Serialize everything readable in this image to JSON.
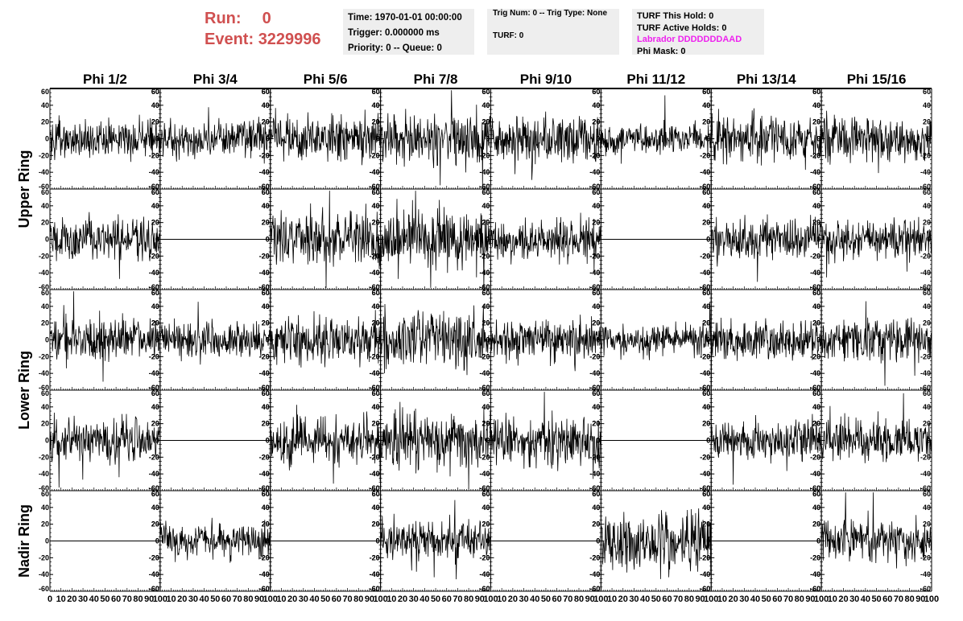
{
  "header": {
    "run_label": "Run:",
    "run_value": "0",
    "event_label": "Event:",
    "event_value": "3229996",
    "colors": {
      "run_event": "#d05050",
      "labrador": "#ee22ee",
      "box_bg": "#eeeeee"
    }
  },
  "info": {
    "time": "Time: 1970-01-01 00:00:00",
    "trigger": "Trigger: 0.000000 ms",
    "priority": "Priority: 0 -- Queue: 0",
    "trig_num": "Trig Num: 0 -- Trig Type: None",
    "turf": "TURF: 0",
    "turf_this_hold": "TURF This Hold: 0",
    "turf_active_holds": "TURF Active Holds: 0",
    "labrador": "Labrador DDDDDDDAAD",
    "phi_mask": "Phi Mask: 0"
  },
  "chart_data": {
    "type": "line",
    "columns": [
      "Phi 1/2",
      "Phi 3/4",
      "Phi 5/6",
      "Phi 7/8",
      "Phi 9/10",
      "Phi 11/12",
      "Phi 13/14",
      "Phi 15/16"
    ],
    "ring_labels": [
      {
        "label": "Upper Ring",
        "rows": [
          0,
          1
        ]
      },
      {
        "label": "Lower Ring",
        "rows": [
          2,
          3
        ]
      },
      {
        "label": "Nadir Ring",
        "rows": [
          4
        ]
      }
    ],
    "ylim": [
      -60,
      60
    ],
    "y_ticks": [
      -60,
      -40,
      -20,
      0,
      20,
      40,
      60
    ],
    "xlim": [
      0,
      100
    ],
    "x_ticks": [
      0,
      10,
      20,
      30,
      40,
      50,
      60,
      70,
      80,
      90,
      100
    ],
    "grid": false,
    "channels": [
      [
        {
          "flat": false,
          "amp": 11,
          "seed": 101
        },
        {
          "flat": false,
          "amp": 10,
          "seed": 102
        },
        {
          "flat": false,
          "amp": 13,
          "seed": 103
        },
        {
          "flat": false,
          "amp": 15,
          "seed": 104
        },
        {
          "flat": false,
          "amp": 13,
          "seed": 105
        },
        {
          "flat": false,
          "amp": 9,
          "seed": 106
        },
        {
          "flat": false,
          "amp": 13,
          "seed": 107
        },
        {
          "flat": false,
          "amp": 12,
          "seed": 108
        }
      ],
      [
        {
          "flat": false,
          "amp": 12,
          "seed": 201
        },
        {
          "flat": true,
          "amp": 0,
          "seed": 202
        },
        {
          "flat": false,
          "amp": 15,
          "seed": 203
        },
        {
          "flat": false,
          "amp": 18,
          "seed": 204
        },
        {
          "flat": false,
          "amp": 12,
          "seed": 205
        },
        {
          "flat": true,
          "amp": 0,
          "seed": 206
        },
        {
          "flat": false,
          "amp": 11,
          "seed": 207
        },
        {
          "flat": false,
          "amp": 11,
          "seed": 208
        }
      ],
      [
        {
          "flat": false,
          "amp": 13,
          "seed": 301
        },
        {
          "flat": false,
          "amp": 10,
          "seed": 302
        },
        {
          "flat": false,
          "amp": 13,
          "seed": 303
        },
        {
          "flat": false,
          "amp": 15,
          "seed": 304
        },
        {
          "flat": false,
          "amp": 12,
          "seed": 305
        },
        {
          "flat": false,
          "amp": 9,
          "seed": 306
        },
        {
          "flat": false,
          "amp": 12,
          "seed": 307
        },
        {
          "flat": false,
          "amp": 12,
          "seed": 308
        }
      ],
      [
        {
          "flat": false,
          "amp": 13,
          "seed": 401
        },
        {
          "flat": true,
          "amp": 0,
          "seed": 402
        },
        {
          "flat": false,
          "amp": 13,
          "seed": 403
        },
        {
          "flat": false,
          "amp": 17,
          "seed": 404
        },
        {
          "flat": false,
          "amp": 14,
          "seed": 405
        },
        {
          "flat": true,
          "amp": 0,
          "seed": 406
        },
        {
          "flat": false,
          "amp": 11,
          "seed": 407
        },
        {
          "flat": false,
          "amp": 12,
          "seed": 408
        }
      ],
      [
        {
          "flat": true,
          "amp": 0,
          "seed": 501
        },
        {
          "flat": false,
          "amp": 10,
          "seed": 502
        },
        {
          "flat": true,
          "amp": 0,
          "seed": 503
        },
        {
          "flat": false,
          "amp": 12,
          "seed": 504
        },
        {
          "flat": true,
          "amp": 0,
          "seed": 505
        },
        {
          "flat": false,
          "amp": 17,
          "seed": 506
        },
        {
          "flat": true,
          "amp": 0,
          "seed": 507
        },
        {
          "flat": false,
          "amp": 13,
          "seed": 508
        }
      ]
    ]
  }
}
